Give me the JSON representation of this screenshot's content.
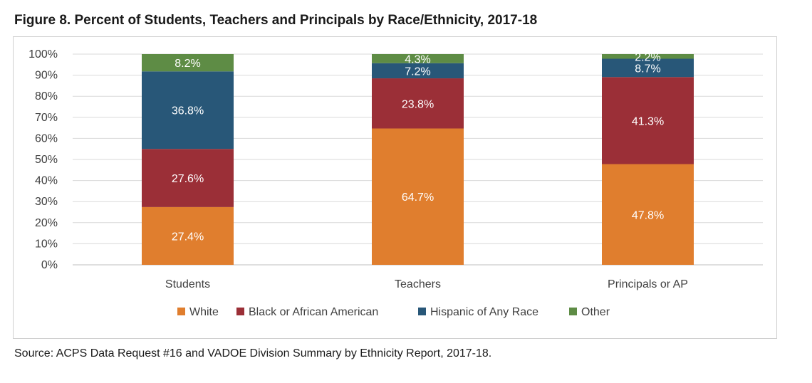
{
  "figure": {
    "title": "Figure 8. Percent of Students, Teachers and Principals by Race/Ethnicity, 2017-18",
    "source": "Source: ACPS Data Request #16 and VADOE Division Summary by Ethnicity Report, 2017-18."
  },
  "chart_data": {
    "type": "bar",
    "stacked": true,
    "categories": [
      "Students",
      "Teachers",
      "Principals or AP"
    ],
    "series": [
      {
        "name": "White",
        "color": "#E07E2E",
        "values": [
          27.4,
          64.7,
          47.8
        ],
        "labels": [
          "27.4%",
          "64.7%",
          "47.8%"
        ]
      },
      {
        "name": "Black or African American",
        "color": "#9B2F37",
        "values": [
          27.6,
          23.8,
          41.3
        ],
        "labels": [
          "27.6%",
          "23.8%",
          "41.3%"
        ]
      },
      {
        "name": "Hispanic of Any Race",
        "color": "#285778",
        "values": [
          36.8,
          7.2,
          8.7
        ],
        "labels": [
          "36.8%",
          "7.2%",
          "8.7%"
        ]
      },
      {
        "name": "Other",
        "color": "#5E8C45",
        "values": [
          8.2,
          4.3,
          2.2
        ],
        "labels": [
          "8.2%",
          "4.3%",
          "2.2%"
        ]
      }
    ],
    "ylim": [
      0,
      100
    ],
    "yticks": [
      "0%",
      "10%",
      "20%",
      "30%",
      "40%",
      "50%",
      "60%",
      "70%",
      "80%",
      "90%",
      "100%"
    ],
    "grid": true,
    "legend_position": "bottom"
  }
}
